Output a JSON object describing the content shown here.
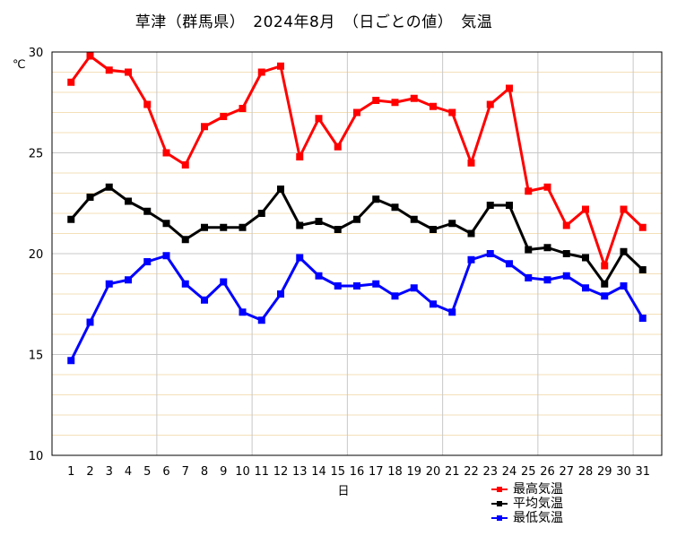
{
  "chart_data": {
    "type": "line",
    "title": "草津（群馬県）　2024年8月　（日ごとの値）　気温",
    "ylabel": "℃",
    "xlabel": "日",
    "ylim": [
      10,
      30
    ],
    "yticks": [
      10,
      15,
      20,
      25,
      30
    ],
    "grid": true,
    "legend_position": "bottom-right",
    "x": [
      1,
      2,
      3,
      4,
      5,
      6,
      7,
      8,
      9,
      10,
      11,
      12,
      13,
      14,
      15,
      16,
      17,
      18,
      19,
      20,
      21,
      22,
      23,
      24,
      25,
      26,
      27,
      28,
      29,
      30,
      31
    ],
    "series": [
      {
        "name": "最高気温",
        "color": "#ff0000",
        "values": [
          28.5,
          29.8,
          29.1,
          29.0,
          27.4,
          25.0,
          24.4,
          26.3,
          26.8,
          27.2,
          29.0,
          29.3,
          24.8,
          26.7,
          25.3,
          27.0,
          27.6,
          27.5,
          27.7,
          27.3,
          27.0,
          24.5,
          27.4,
          28.2,
          23.1,
          23.3,
          21.4,
          22.2,
          19.4,
          22.2,
          21.3
        ]
      },
      {
        "name": "平均気温",
        "color": "#000000",
        "values": [
          21.7,
          22.8,
          23.3,
          22.6,
          22.1,
          21.5,
          20.7,
          21.3,
          21.3,
          21.3,
          22.0,
          23.2,
          21.4,
          21.6,
          21.2,
          21.7,
          22.7,
          22.3,
          21.7,
          21.2,
          21.5,
          21.0,
          22.4,
          22.4,
          20.2,
          20.3,
          20.0,
          19.8,
          18.5,
          20.1,
          19.2
        ]
      },
      {
        "name": "最低気温",
        "color": "#0000ff",
        "values": [
          14.7,
          16.6,
          18.5,
          18.7,
          19.6,
          19.9,
          18.5,
          17.7,
          18.6,
          17.1,
          16.7,
          18.0,
          19.8,
          18.9,
          18.4,
          18.4,
          18.5,
          17.9,
          18.3,
          17.5,
          17.1,
          19.7,
          20.0,
          19.5,
          18.8,
          18.7,
          18.9,
          18.3,
          17.9,
          18.4,
          16.8
        ]
      }
    ]
  },
  "colors": {
    "grid_major": "#c8c8c8",
    "grid_minor": "#f4dfb8",
    "axis": "#000000"
  }
}
